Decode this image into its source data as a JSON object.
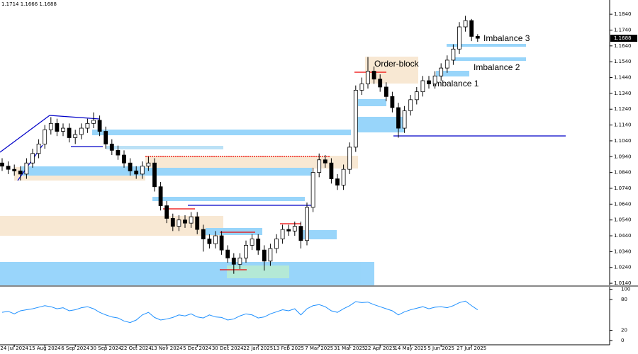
{
  "chart_data": [
    {
      "type": "candlestick",
      "ohlc_header": "1.1714 1.1666 1.1688",
      "last_price": 1.1688,
      "color": "#000000",
      "grid": false,
      "categories": [
        null,
        null,
        "24 Jul 2024",
        null,
        null,
        null,
        null,
        "15 Aug 2024",
        null,
        null,
        null,
        null,
        "6 Sep 2024",
        null,
        null,
        null,
        null,
        "30 Sep 2024",
        null,
        null,
        null,
        null,
        "22 Oct 2024",
        null,
        null,
        null,
        null,
        "13 Nov 2024",
        null,
        null,
        null,
        null,
        "5 Dec 2024",
        null,
        null,
        null,
        null,
        "30 Dec 2024",
        null,
        null,
        null,
        null,
        "22 Jan 2025",
        null,
        null,
        null,
        null,
        "13 Feb 2025",
        null,
        null,
        null,
        null,
        "7 Mar 2025",
        null,
        null,
        null,
        null,
        "31 Mar 2025",
        null,
        null,
        null,
        null,
        "22 Apr 2025",
        null,
        null,
        null,
        null,
        "14 May 2025",
        null,
        null,
        null,
        null,
        "5 Jun 2025",
        null,
        null,
        null,
        null,
        "27 Jun 2025",
        null
      ],
      "open": [
        1.09,
        1.088,
        1.086,
        1.085,
        1.083,
        1.09,
        1.096,
        1.102,
        1.111,
        1.115,
        1.11,
        1.112,
        1.106,
        1.108,
        1.112,
        1.115,
        1.117,
        1.11,
        1.102,
        1.098,
        1.095,
        1.09,
        1.085,
        1.083,
        1.088,
        1.09,
        1.075,
        1.063,
        1.055,
        1.05,
        1.054,
        1.052,
        1.056,
        1.048,
        1.042,
        1.039,
        1.044,
        1.035,
        1.03,
        1.026,
        1.03,
        1.038,
        1.042,
        1.035,
        1.028,
        1.036,
        1.042,
        1.048,
        1.047,
        1.05,
        1.041,
        1.062,
        1.084,
        1.092,
        1.09,
        1.08,
        1.076,
        1.086,
        1.1,
        1.136,
        1.14,
        1.148,
        1.143,
        1.138,
        1.132,
        1.125,
        1.112,
        1.123,
        1.13,
        1.135,
        1.142,
        1.14,
        1.145,
        1.15,
        1.155,
        1.162,
        1.176,
        1.18,
        1.17
      ],
      "high": [
        1.093,
        1.091,
        1.089,
        1.088,
        1.093,
        1.099,
        1.105,
        1.114,
        1.119,
        1.118,
        1.115,
        1.115,
        1.111,
        1.115,
        1.118,
        1.122,
        1.12,
        1.113,
        1.105,
        1.101,
        1.098,
        1.093,
        1.088,
        1.091,
        1.094,
        1.093,
        1.078,
        1.066,
        1.058,
        1.057,
        1.057,
        1.059,
        1.059,
        1.051,
        1.045,
        1.047,
        1.047,
        1.038,
        1.033,
        1.033,
        1.041,
        1.045,
        1.045,
        1.038,
        1.039,
        1.045,
        1.051,
        1.051,
        1.053,
        1.053,
        1.065,
        1.087,
        1.096,
        1.095,
        1.093,
        1.083,
        1.089,
        1.103,
        1.139,
        1.144,
        1.157,
        1.151,
        1.146,
        1.141,
        1.135,
        1.128,
        1.126,
        1.133,
        1.138,
        1.145,
        1.145,
        1.148,
        1.153,
        1.158,
        1.165,
        1.179,
        1.183,
        1.181,
        1.1714
      ],
      "low": [
        1.085,
        1.083,
        1.082,
        1.079,
        1.08,
        1.087,
        1.093,
        1.099,
        1.108,
        1.107,
        1.107,
        1.103,
        1.102,
        1.105,
        1.109,
        1.112,
        1.107,
        1.099,
        1.095,
        1.092,
        1.087,
        1.082,
        1.08,
        1.08,
        1.085,
        1.072,
        1.06,
        1.052,
        1.047,
        1.047,
        1.049,
        1.049,
        1.045,
        1.034,
        1.036,
        1.036,
        1.032,
        1.027,
        1.02,
        1.023,
        1.027,
        1.035,
        1.032,
        1.022,
        1.025,
        1.033,
        1.039,
        1.044,
        1.044,
        1.036,
        1.038,
        1.059,
        1.081,
        1.087,
        1.077,
        1.073,
        1.073,
        1.083,
        1.097,
        1.133,
        1.137,
        1.14,
        1.135,
        1.129,
        1.122,
        1.106,
        1.109,
        1.12,
        1.127,
        1.132,
        1.137,
        1.137,
        1.142,
        1.147,
        1.152,
        1.159,
        1.173,
        1.167,
        1.1666
      ],
      "close": [
        1.088,
        1.086,
        1.085,
        1.083,
        1.09,
        1.096,
        1.102,
        1.111,
        1.115,
        1.11,
        1.112,
        1.106,
        1.108,
        1.112,
        1.115,
        1.117,
        1.11,
        1.102,
        1.098,
        1.095,
        1.09,
        1.085,
        1.083,
        1.088,
        1.09,
        1.075,
        1.063,
        1.055,
        1.05,
        1.054,
        1.052,
        1.056,
        1.048,
        1.042,
        1.039,
        1.044,
        1.035,
        1.03,
        1.026,
        1.03,
        1.038,
        1.042,
        1.035,
        1.028,
        1.036,
        1.042,
        1.048,
        1.047,
        1.05,
        1.041,
        1.062,
        1.084,
        1.092,
        1.09,
        1.08,
        1.076,
        1.086,
        1.1,
        1.136,
        1.14,
        1.148,
        1.143,
        1.138,
        1.132,
        1.125,
        1.112,
        1.123,
        1.13,
        1.135,
        1.142,
        1.14,
        1.145,
        1.15,
        1.155,
        1.162,
        1.176,
        1.18,
        1.17,
        1.1688
      ],
      "ylim": [
        1.0127,
        1.193
      ],
      "yticks": [
        {
          "value": 1.184,
          "label": "1.1840"
        },
        {
          "value": 1.174,
          "label": "1.1740"
        },
        {
          "value": 1.164,
          "label": "1.1640"
        },
        {
          "value": 1.154,
          "label": "1.1540"
        },
        {
          "value": 1.144,
          "label": "1.1440"
        },
        {
          "value": 1.134,
          "label": "1.1340"
        },
        {
          "value": 1.124,
          "label": "1.1240"
        },
        {
          "value": 1.114,
          "label": "1.1140"
        },
        {
          "value": 1.104,
          "label": "1.1040"
        },
        {
          "value": 1.094,
          "label": "1.0940"
        },
        {
          "value": 1.084,
          "label": "1.0840"
        },
        {
          "value": 1.074,
          "label": "1.0740"
        },
        {
          "value": 1.064,
          "label": "1.0640"
        },
        {
          "value": 1.054,
          "label": "1.0540"
        },
        {
          "value": 1.044,
          "label": "1.0440"
        },
        {
          "value": 1.034,
          "label": "1.0340"
        },
        {
          "value": 1.024,
          "label": "1.0240"
        },
        {
          "value": 1.014,
          "label": "1.0140"
        }
      ],
      "annotations": [
        "Order-block",
        "Imbalance 3",
        "Imbalance 2",
        "Imbalance 1"
      ]
    },
    {
      "type": "line",
      "color": "#1e90ff",
      "values": [
        55,
        57,
        52,
        58,
        60,
        62,
        65,
        68,
        66,
        62,
        64,
        58,
        60,
        64,
        66,
        62,
        55,
        50,
        46,
        44,
        38,
        35,
        40,
        50,
        55,
        45,
        40,
        42,
        45,
        50,
        48,
        52,
        46,
        44,
        50,
        46,
        45,
        40,
        42,
        48,
        52,
        50,
        44,
        46,
        52,
        56,
        60,
        58,
        62,
        50,
        62,
        68,
        70,
        66,
        58,
        55,
        62,
        68,
        76,
        74,
        75,
        70,
        66,
        62,
        58,
        50,
        56,
        60,
        63,
        66,
        62,
        65,
        66,
        64,
        68,
        74,
        77,
        68,
        60
      ],
      "ylim": [
        -7,
        105
      ],
      "yticks": [
        100,
        80,
        20,
        0
      ]
    }
  ]
}
